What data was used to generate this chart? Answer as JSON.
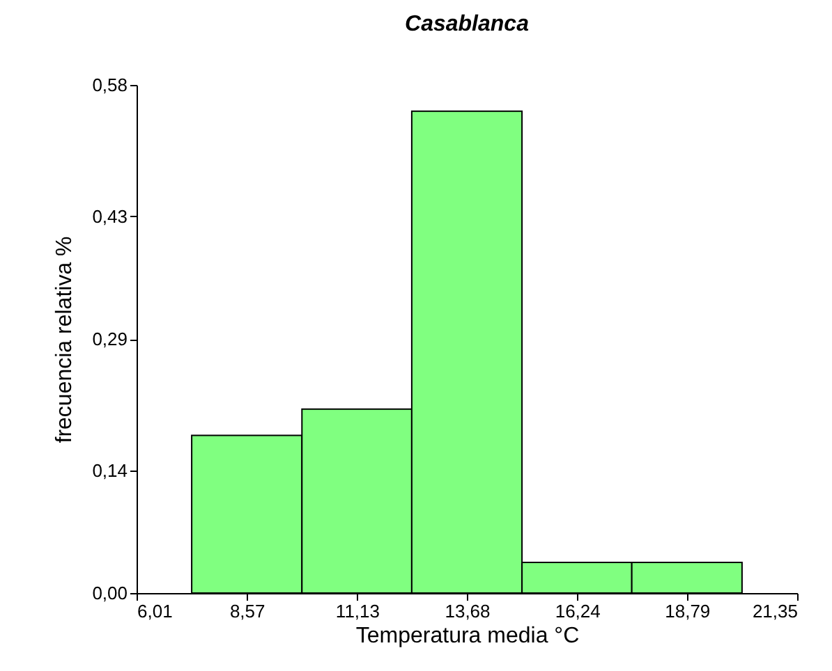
{
  "chart_data": {
    "type": "histogram",
    "title": "Casablanca",
    "xlabel": "Temperatura media °C",
    "ylabel": "frecuencia relativa %",
    "bins": [
      7.29,
      9.85,
      12.4,
      14.96,
      17.51,
      20.07
    ],
    "values": [
      0.18,
      0.21,
      0.55,
      0.035,
      0.035
    ],
    "color": "#80ff80",
    "xlim": [
      6.01,
      21.35
    ],
    "xticks": [
      {
        "value": 6.01,
        "label": "6,01"
      },
      {
        "value": 8.57,
        "label": "8,57"
      },
      {
        "value": 11.13,
        "label": "11,13"
      },
      {
        "value": 13.68,
        "label": "13,68"
      },
      {
        "value": 16.24,
        "label": "16,24"
      },
      {
        "value": 18.79,
        "label": "18,79"
      },
      {
        "value": 21.35,
        "label": "21,35"
      }
    ],
    "ylim": [
      0,
      0.58
    ],
    "yticks": [
      {
        "value": 0,
        "label": "0,00"
      },
      {
        "value": 0.14,
        "label": "0,14"
      },
      {
        "value": 0.29,
        "label": "0,29"
      },
      {
        "value": 0.43,
        "label": "0,43"
      },
      {
        "value": 0.58,
        "label": "0,58"
      }
    ],
    "grid": false
  }
}
